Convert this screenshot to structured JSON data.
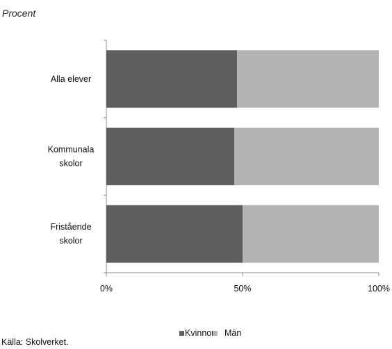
{
  "chart_data": {
    "type": "bar",
    "orientation": "horizontal",
    "stacked": true,
    "unit_label": "Procent",
    "categories": [
      "Alla elever",
      "Kommunala skolor",
      "Fristående skolor"
    ],
    "category_lines": [
      [
        "Alla elever"
      ],
      [
        "Kommunala",
        "skolor"
      ],
      [
        "Fristående",
        "skolor"
      ]
    ],
    "series": [
      {
        "name": "Kvinnor",
        "color": "#5f5f5f",
        "values": [
          48,
          47,
          50
        ]
      },
      {
        "name": "Män",
        "color": "#b3b3b3",
        "values": [
          52,
          53,
          50
        ]
      }
    ],
    "x_ticks": [
      0,
      50,
      100
    ],
    "x_tick_labels": [
      "0%",
      "50%",
      "100%"
    ],
    "xlim": [
      0,
      100
    ],
    "grid": false,
    "legend_position": "bottom",
    "source": "Källa: Skolverket."
  }
}
